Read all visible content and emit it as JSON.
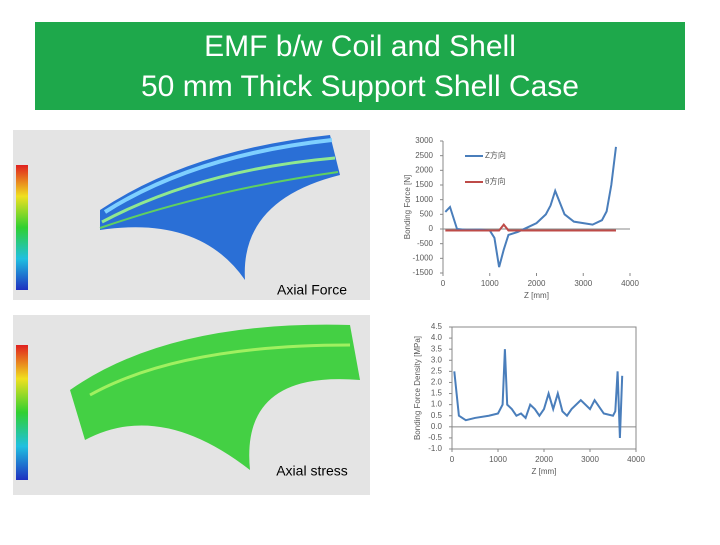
{
  "header": {
    "title_lines": [
      "EMF b/w Coil and Shell",
      "50 mm Thick Support Shell Case"
    ]
  },
  "images": [
    {
      "caption": "Axial Force"
    },
    {
      "caption": "Axial stress"
    }
  ],
  "chart_data": [
    {
      "type": "line",
      "xlabel": "Z [mm]",
      "ylabel": "Bonding Force [N]",
      "x": [
        50,
        150,
        300,
        500,
        800,
        1000,
        1100,
        1200,
        1300,
        1400,
        1600,
        1800,
        2000,
        2200,
        2300,
        2400,
        2500,
        2600,
        2800,
        3000,
        3200,
        3400,
        3500,
        3600,
        3700
      ],
      "series": [
        {
          "name": "Z方向",
          "color": "#4a7ebb",
          "values": [
            580,
            750,
            0,
            -30,
            -20,
            -50,
            -300,
            -1300,
            -700,
            -200,
            -100,
            50,
            200,
            500,
            800,
            1300,
            900,
            500,
            250,
            200,
            150,
            300,
            600,
            1500,
            2800
          ]
        },
        {
          "name": "θ方向",
          "color": "#be4b48",
          "values": [
            -50,
            -50,
            -50,
            -50,
            -50,
            -50,
            -50,
            -50,
            150,
            -50,
            -50,
            -50,
            -50,
            -50,
            -50,
            -50,
            -50,
            -50,
            -50,
            -50,
            -50,
            -50,
            -50,
            -50,
            -50
          ]
        }
      ],
      "xlim": [
        0,
        4000
      ],
      "xticks": [
        0,
        1000,
        2000,
        3000,
        4000
      ],
      "ylim": [
        -1500,
        3000
      ],
      "yticks": [
        -1500,
        -1000,
        -500,
        0,
        500,
        1000,
        1500,
        2000,
        2500,
        3000
      ]
    },
    {
      "type": "line",
      "xlabel": "Z [mm]",
      "ylabel": "Bonding Force Density [MPa]",
      "x": [
        50,
        150,
        300,
        500,
        800,
        1000,
        1100,
        1150,
        1200,
        1300,
        1400,
        1500,
        1600,
        1700,
        1800,
        1900,
        2000,
        2100,
        2200,
        2300,
        2400,
        2500,
        2600,
        2800,
        3000,
        3100,
        3300,
        3500,
        3550,
        3600,
        3650,
        3700
      ],
      "series": [
        {
          "name": "",
          "color": "#4a7ebb",
          "values": [
            2.5,
            0.5,
            0.3,
            0.4,
            0.5,
            0.6,
            1.0,
            3.5,
            1.0,
            0.8,
            0.5,
            0.6,
            0.4,
            1.0,
            0.8,
            0.5,
            0.8,
            1.5,
            0.8,
            1.5,
            0.7,
            0.5,
            0.8,
            1.2,
            0.8,
            1.2,
            0.6,
            0.5,
            0.7,
            2.5,
            -0.5,
            2.3
          ]
        }
      ],
      "xlim": [
        0,
        4000
      ],
      "xticks": [
        0,
        1000,
        2000,
        3000,
        4000
      ],
      "ylim": [
        -1,
        4.5
      ],
      "yticks": [
        {
          "value": -1,
          "label": "-1.0"
        },
        -0.5,
        {
          "value": 0,
          "label": "0.0"
        },
        0.5,
        {
          "value": 1,
          "label": "1.0"
        },
        1.5,
        {
          "value": 2,
          "label": "2.0"
        },
        2.5,
        {
          "value": 3,
          "label": "3.0"
        },
        3.5,
        {
          "value": 4,
          "label": "4.0"
        },
        4.5
      ]
    }
  ]
}
